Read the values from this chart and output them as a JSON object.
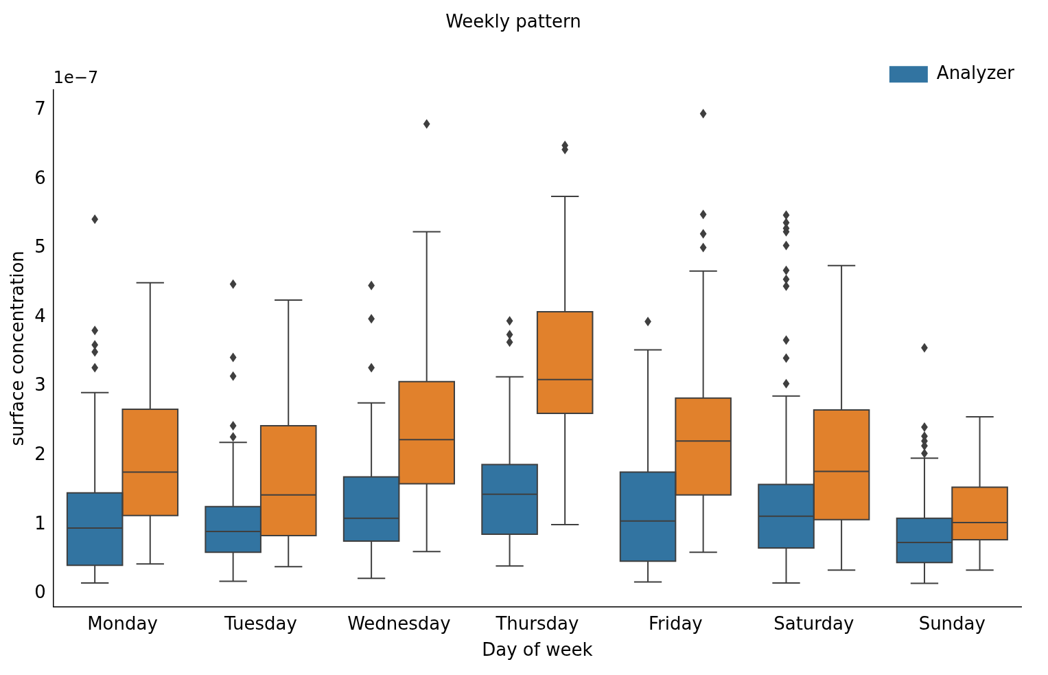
{
  "chart_data": {
    "type": "box",
    "title": "Weekly pattern",
    "xlabel": "Day of week",
    "ylabel": "surface concentration",
    "annotations": [
      "1e−7"
    ],
    "categories": [
      "Monday",
      "Tuesday",
      "Wednesday",
      "Thursday",
      "Friday",
      "Saturday",
      "Sunday"
    ],
    "ylim": [
      -0.19,
      7.29
    ],
    "yticks": [
      0,
      1,
      2,
      3,
      4,
      5,
      6,
      7
    ],
    "grid": false,
    "legend": "top right",
    "marker": "diamond",
    "series": [
      {
        "name": "Analyzer",
        "color": "#3274a1",
        "boxes": [
          {
            "low": 0.155,
            "q1": 0.41,
            "median": 0.95,
            "q3": 1.46,
            "high": 2.91,
            "outliers": [
              3.27,
              3.5,
              3.6,
              3.81,
              5.42
            ]
          },
          {
            "low": 0.18,
            "q1": 0.6,
            "median": 0.9,
            "q3": 1.26,
            "high": 2.19,
            "outliers": [
              2.27,
              2.43,
              3.15,
              3.42,
              4.48
            ]
          },
          {
            "low": 0.22,
            "q1": 0.76,
            "median": 1.09,
            "q3": 1.69,
            "high": 2.76,
            "outliers": [
              3.27,
              3.98,
              4.46
            ]
          },
          {
            "low": 0.4,
            "q1": 0.86,
            "median": 1.44,
            "q3": 1.87,
            "high": 3.14,
            "outliers": [
              3.64,
              3.75,
              3.95
            ]
          },
          {
            "low": 0.17,
            "q1": 0.47,
            "median": 1.05,
            "q3": 1.76,
            "high": 3.53,
            "outliers": [
              3.94
            ]
          },
          {
            "low": 0.155,
            "q1": 0.66,
            "median": 1.12,
            "q3": 1.58,
            "high": 2.86,
            "outliers": [
              3.04,
              3.41,
              3.67,
              4.45,
              4.55,
              4.68,
              5.04,
              5.24,
              5.29,
              5.37,
              5.48
            ]
          },
          {
            "low": 0.15,
            "q1": 0.45,
            "median": 0.74,
            "q3": 1.09,
            "high": 1.96,
            "outliers": [
              2.03,
              2.14,
              2.21,
              2.28,
              2.41,
              3.56
            ]
          }
        ]
      },
      {
        "color": "#e1812c",
        "boxes": [
          {
            "low": 0.43,
            "q1": 1.13,
            "median": 1.76,
            "q3": 2.67,
            "high": 4.5
          },
          {
            "low": 0.39,
            "q1": 0.84,
            "median": 1.43,
            "q3": 2.43,
            "high": 4.25
          },
          {
            "low": 0.61,
            "q1": 1.59,
            "median": 2.23,
            "q3": 3.07,
            "high": 5.24,
            "outliers": [
              6.8
            ]
          },
          {
            "low": 1.0,
            "q1": 2.61,
            "median": 3.1,
            "q3": 4.08,
            "high": 5.75,
            "outliers": [
              6.43,
              6.49
            ]
          },
          {
            "low": 0.6,
            "q1": 1.43,
            "median": 2.21,
            "q3": 2.83,
            "high": 4.67,
            "outliers": [
              5.01,
              5.21,
              5.49,
              6.95
            ]
          },
          {
            "low": 0.34,
            "q1": 1.07,
            "median": 1.77,
            "q3": 2.66,
            "high": 4.75
          },
          {
            "low": 0.34,
            "q1": 0.78,
            "median": 1.03,
            "q3": 1.54,
            "high": 2.56
          }
        ]
      }
    ]
  }
}
